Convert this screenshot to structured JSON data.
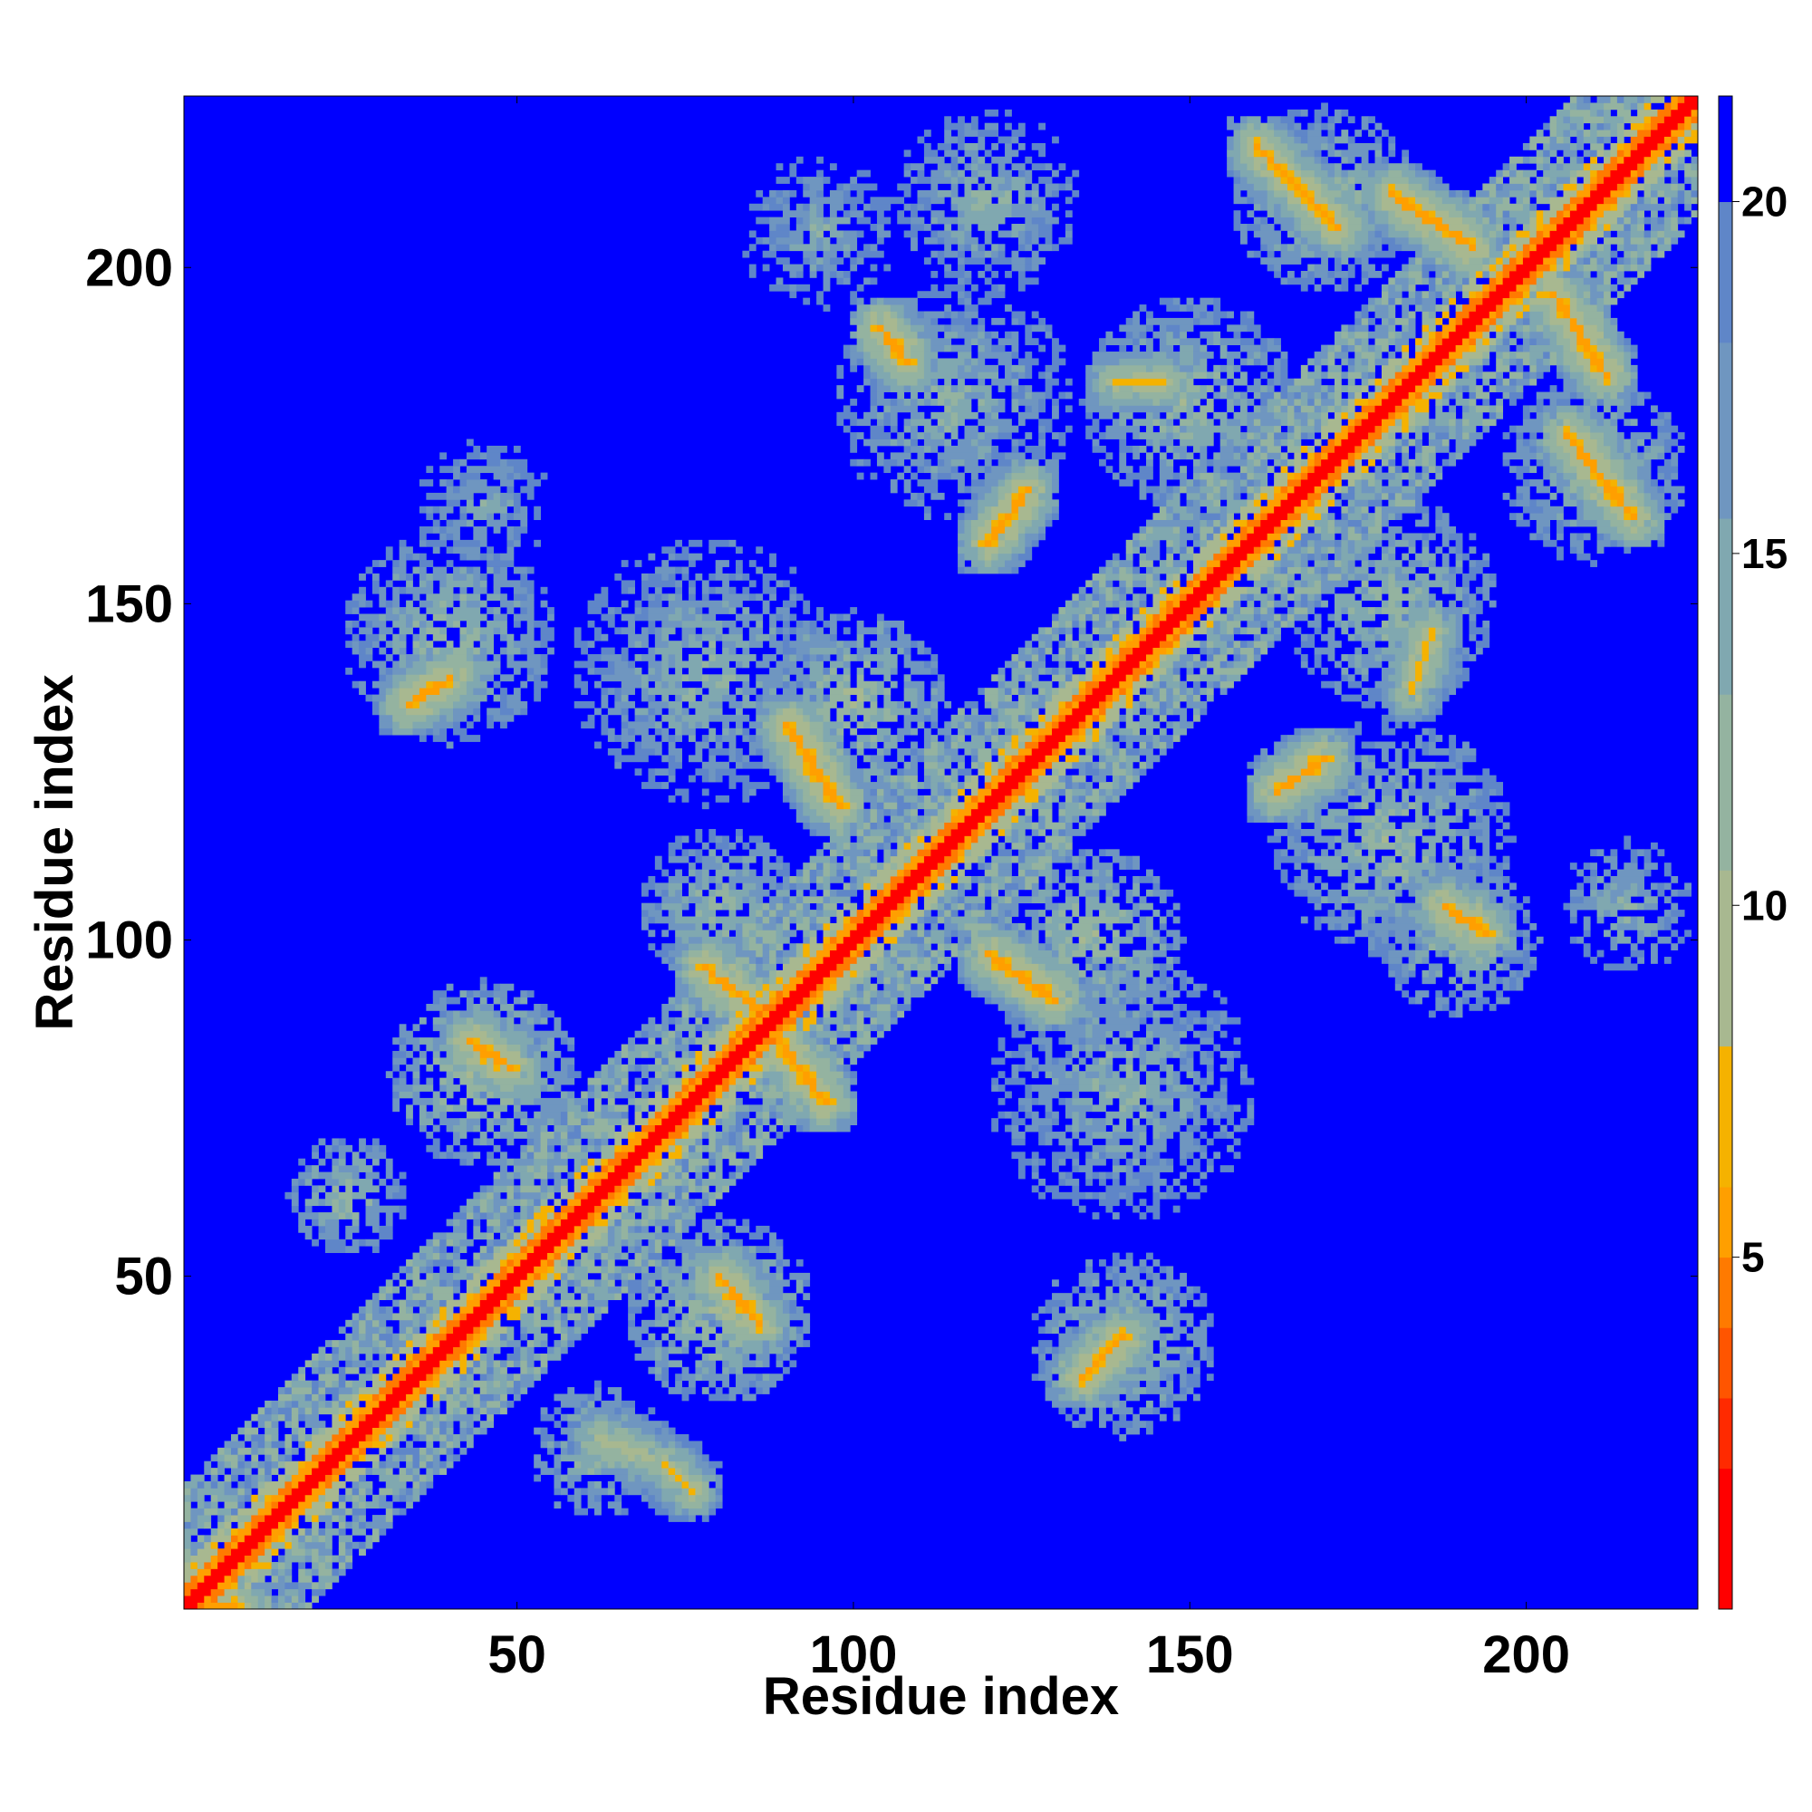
{
  "chart_data": {
    "type": "heatmap",
    "title": "",
    "xlabel": "Residue index",
    "ylabel": "Residue index",
    "n": 225,
    "xlim": [
      1,
      225
    ],
    "ylim": [
      1,
      225
    ],
    "x_ticks": [
      50,
      100,
      150,
      200
    ],
    "y_ticks": [
      50,
      100,
      150,
      200
    ],
    "colorbar": {
      "ticks": [
        5,
        10,
        15,
        20
      ],
      "range": [
        0,
        21.5
      ],
      "colors": [
        "#ff0000",
        "#ff2a00",
        "#ff5500",
        "#ff7a00",
        "#ff9f00",
        "#f5b200",
        "#a8b890",
        "#94b3a0",
        "#80a8b0",
        "#6f96c0",
        "#5f86c8",
        "#0000ff"
      ],
      "bounds": [
        0,
        2.0,
        3.0,
        4.0,
        5.0,
        6.0,
        8.0,
        10.5,
        13.0,
        15.5,
        18.0,
        20.0,
        21.5
      ]
    },
    "background_value": 21.5,
    "diagonal": {
      "from": 1,
      "to": 225,
      "value": 1.5,
      "band_width": 6
    },
    "contact_streaks": [
      {
        "from": [
          2,
          2
        ],
        "to": [
          8,
          1
        ],
        "value": 5
      },
      {
        "from": [
          43,
          85
        ],
        "to": [
          49,
          81
        ],
        "value": 5
      },
      {
        "from": [
          34,
          135
        ],
        "to": [
          40,
          139
        ],
        "value": 5
      },
      {
        "from": [
          78,
          96
        ],
        "to": [
          88,
          88
        ],
        "value": 5
      },
      {
        "from": [
          88,
          86
        ],
        "to": [
          96,
          76
        ],
        "value": 5
      },
      {
        "from": [
          80,
          50
        ],
        "to": [
          86,
          43
        ],
        "value": 5
      },
      {
        "from": [
          90,
          132
        ],
        "to": [
          98,
          120
        ],
        "value": 5
      },
      {
        "from": [
          120,
          98
        ],
        "to": [
          130,
          91
        ],
        "value": 5
      },
      {
        "from": [
          120,
          159
        ],
        "to": [
          126,
          167
        ],
        "value": 5
      },
      {
        "from": [
          134,
          35
        ],
        "to": [
          140,
          41
        ],
        "value": 5
      },
      {
        "from": [
          163,
          122
        ],
        "to": [
          170,
          127
        ],
        "value": 5
      },
      {
        "from": [
          160,
          218
        ],
        "to": [
          172,
          206
        ],
        "value": 5
      },
      {
        "from": [
          180,
          211
        ],
        "to": [
          192,
          203
        ],
        "value": 5
      },
      {
        "from": [
          204,
          196
        ],
        "to": [
          212,
          184
        ],
        "value": 5
      },
      {
        "from": [
          206,
          175
        ],
        "to": [
          216,
          163
        ],
        "value": 5
      },
      {
        "from": [
          188,
          105
        ],
        "to": [
          194,
          101
        ],
        "value": 5
      },
      {
        "from": [
          104,
          191
        ],
        "to": [
          108,
          186
        ],
        "value": 5
      },
      {
        "from": [
          72,
          22
        ],
        "to": [
          76,
          18
        ],
        "value": 7
      },
      {
        "from": [
          62,
          26
        ],
        "to": [
          70,
          23
        ],
        "value": 8
      },
      {
        "from": [
          183,
          137
        ],
        "to": [
          186,
          146
        ],
        "value": 7
      },
      {
        "from": [
          139,
          183
        ],
        "to": [
          146,
          183
        ],
        "value": 7
      }
    ],
    "contact_regions": [
      {
        "center": [
          62,
          24
        ],
        "radius": 10,
        "value": 12
      },
      {
        "center": [
          25,
          62
        ],
        "radius": 9,
        "value": 12
      },
      {
        "center": [
          45,
          80
        ],
        "radius": 14,
        "value": 11
      },
      {
        "center": [
          80,
          45
        ],
        "radius": 14,
        "value": 11
      },
      {
        "center": [
          40,
          145
        ],
        "radius": 16,
        "value": 12
      },
      {
        "center": [
          78,
          140
        ],
        "radius": 20,
        "value": 13
      },
      {
        "center": [
          140,
          78
        ],
        "radius": 20,
        "value": 13
      },
      {
        "center": [
          140,
          40
        ],
        "radius": 14,
        "value": 12
      },
      {
        "center": [
          135,
          100
        ],
        "radius": 14,
        "value": 11
      },
      {
        "center": [
          100,
          135
        ],
        "radius": 14,
        "value": 11
      },
      {
        "center": [
          115,
          180
        ],
        "radius": 18,
        "value": 13
      },
      {
        "center": [
          180,
          115
        ],
        "radius": 18,
        "value": 12
      },
      {
        "center": [
          150,
          180
        ],
        "radius": 16,
        "value": 12
      },
      {
        "center": [
          180,
          150
        ],
        "radius": 16,
        "value": 12
      },
      {
        "center": [
          170,
          210
        ],
        "radius": 14,
        "value": 12
      },
      {
        "center": [
          210,
          170
        ],
        "radius": 14,
        "value": 12
      },
      {
        "center": [
          120,
          210
        ],
        "radius": 14,
        "value": 13
      },
      {
        "center": [
          95,
          205
        ],
        "radius": 12,
        "value": 14
      },
      {
        "center": [
          190,
          100
        ],
        "radius": 12,
        "value": 12
      },
      {
        "center": [
          215,
          105
        ],
        "radius": 10,
        "value": 13
      },
      {
        "center": [
          45,
          165
        ],
        "radius": 10,
        "value": 14
      },
      {
        "center": [
          80,
          105
        ],
        "radius": 12,
        "value": 12
      }
    ]
  }
}
